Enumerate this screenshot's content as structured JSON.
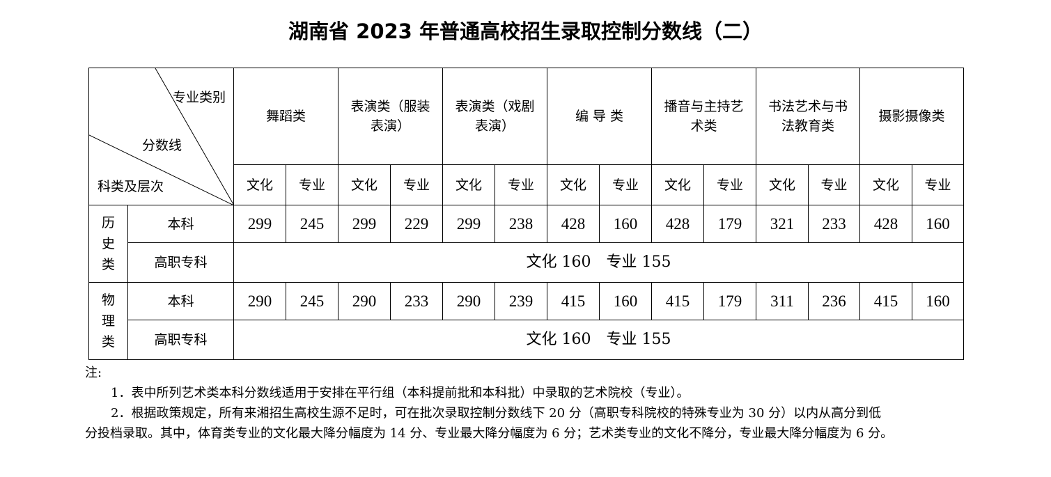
{
  "title": "湖南省 2023 年普通高校招生录取控制分数线（二）",
  "header": {
    "diag_top": "专业类别",
    "diag_mid": "分数线",
    "diag_bottom": "科类及层次",
    "groups": [
      "舞蹈类",
      "表演类（服装表演）",
      "表演类（戏剧表演）",
      "编 导 类",
      "播音与主持艺术类",
      "书法艺术与书法教育类",
      "摄影摄像类"
    ],
    "sub": [
      "文化",
      "专业"
    ]
  },
  "rows": [
    {
      "category": "历史类",
      "levels": [
        {
          "level": "本科",
          "values": [
            "299",
            "245",
            "299",
            "229",
            "299",
            "238",
            "428",
            "160",
            "428",
            "179",
            "321",
            "233",
            "428",
            "160"
          ]
        },
        {
          "level": "高职专科",
          "merged": "文化 160　专业 155"
        }
      ]
    },
    {
      "category": "物理类",
      "levels": [
        {
          "level": "本科",
          "values": [
            "290",
            "245",
            "290",
            "233",
            "290",
            "239",
            "415",
            "160",
            "415",
            "179",
            "311",
            "236",
            "415",
            "160"
          ]
        },
        {
          "level": "高职专科",
          "merged": "文化 160　专业 155"
        }
      ]
    }
  ],
  "notes": {
    "label": "注:",
    "items": [
      "1．表中所列艺术类本科分数线适用于安排在平行组（本科提前批和本科批）中录取的艺术院校（专业）。",
      "2．根据政策规定，所有来湘招生高校生源不足时，可在批次录取控制分数线下 20 分（高职专科院校的特殊专业为 30 分）以内从高分到低",
      "分投档录取。其中，体育类专业的文化最大降分幅度为 14 分、专业最大降分幅度为 6 分；艺术类专业的文化不降分，专业最大降分幅度为 6 分。"
    ]
  }
}
